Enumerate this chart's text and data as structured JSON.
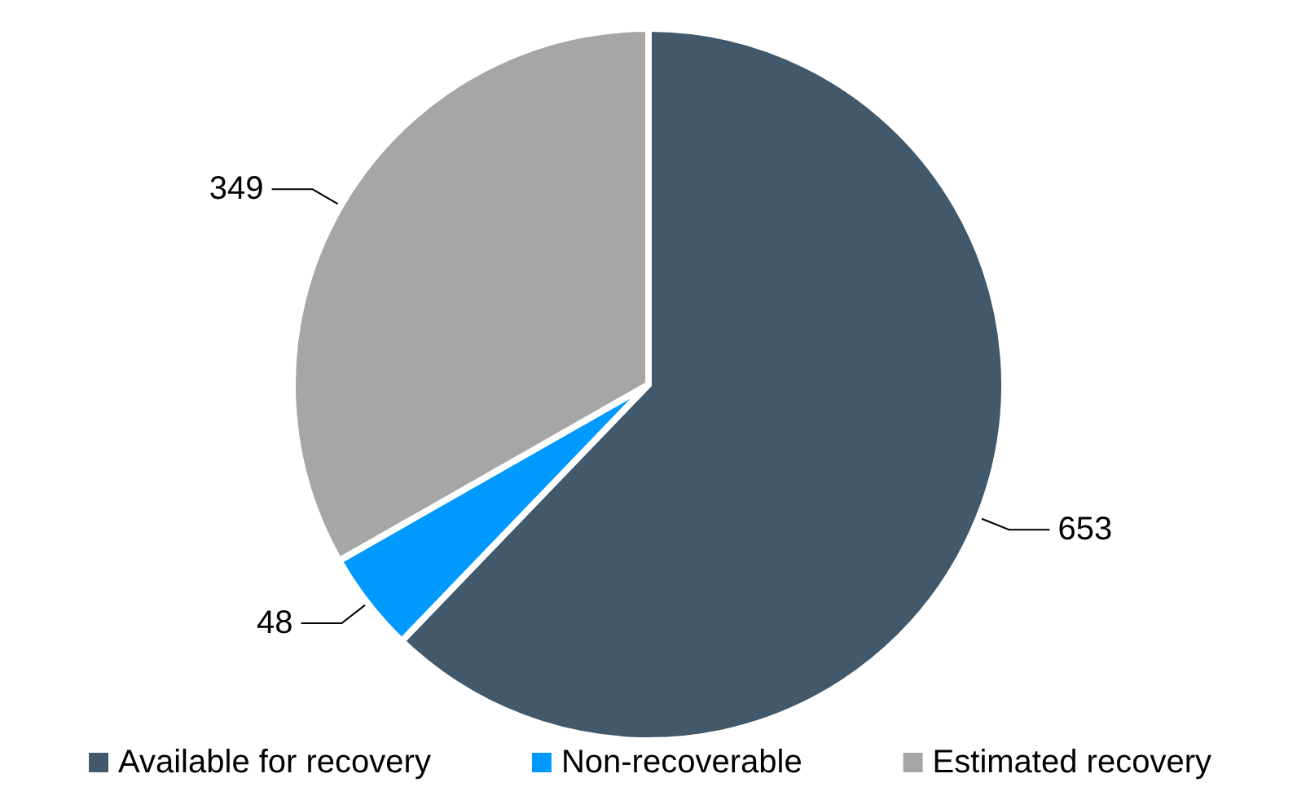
{
  "chart_data": {
    "type": "pie",
    "categories": [
      "Available for recovery",
      "Non-recoverable",
      "Estimated recovery"
    ],
    "values": [
      653,
      48,
      349
    ],
    "colors": [
      "#41596b",
      "#0099ff",
      "#a6a6a6"
    ],
    "data_labels": true,
    "legend": "bottom"
  }
}
